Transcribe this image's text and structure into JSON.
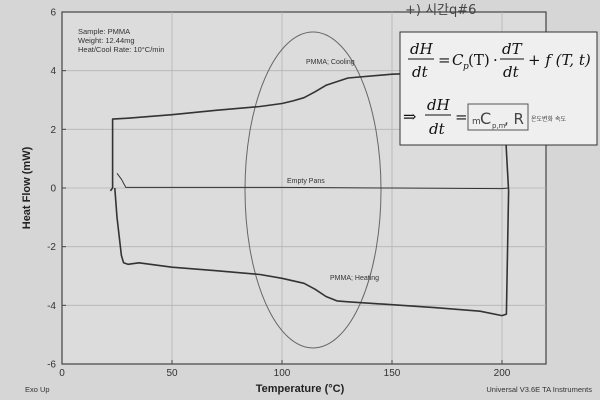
{
  "chart_data": {
    "type": "line",
    "xlabel": "Temperature (°C)",
    "ylabel": "Heat Flow (mW)",
    "xlim": [
      0,
      220
    ],
    "ylim": [
      -6,
      6
    ],
    "x_ticks": [
      "0",
      "50",
      "100",
      "150",
      "200"
    ],
    "y_ticks": [
      "6",
      "4",
      "2",
      "0",
      "-2",
      "-4",
      "-6"
    ],
    "sample_info": [
      "Sample: PMMA",
      "Weight: 12.44mg",
      "Heat/Cool Rate: 10°C/min"
    ],
    "series": [
      {
        "name": "PMMA; Cooling",
        "x": [
          22,
          23,
          23,
          30,
          50,
          70,
          90,
          100,
          105,
          110,
          115,
          120,
          130,
          150,
          170,
          190,
          200,
          203
        ],
        "y": [
          -0.1,
          0.0,
          2.35,
          2.38,
          2.5,
          2.65,
          2.78,
          2.88,
          2.97,
          3.08,
          3.28,
          3.5,
          3.75,
          3.88,
          3.93,
          3.97,
          4.0,
          -0.1
        ]
      },
      {
        "name": "Empty Pans",
        "x": [
          25,
          27,
          29,
          50,
          100,
          150,
          200,
          203
        ],
        "y": [
          0.5,
          0.3,
          0.02,
          0.02,
          0.02,
          0.0,
          -0.02,
          0.0
        ]
      },
      {
        "name": "PMMA; Heating",
        "x": [
          24,
          25,
          27,
          28,
          30,
          35,
          50,
          70,
          90,
          100,
          110,
          115,
          120,
          125,
          130,
          150,
          170,
          190,
          200,
          202,
          203
        ],
        "y": [
          0.0,
          -1.0,
          -2.3,
          -2.55,
          -2.6,
          -2.55,
          -2.7,
          -2.82,
          -2.95,
          -3.08,
          -3.25,
          -3.45,
          -3.7,
          -3.85,
          -3.88,
          -3.98,
          -4.08,
          -4.2,
          -4.35,
          -4.3,
          -0.1
        ]
      }
    ],
    "annotations": [
      "PMMA; Cooling",
      "Empty Pans",
      "PMMA; Heating"
    ]
  },
  "footer": {
    "left": "Exo Up",
    "right": "Universal V3.6E TA Instruments"
  },
  "handwriting": {
    "top": "+) 시간q#6"
  },
  "equation": {
    "dH": "dH",
    "dt": "dt",
    "dT": "dT",
    "cp": "C",
    "cp_sub": "p",
    "T_arg": "(T)",
    "f_term": "+ f (T, t)",
    "eq": "=",
    "dot": "·",
    "implies": "⇒",
    "hand_m": "m",
    "hand_C": "C",
    "hand_sub": "p,m",
    "hand_R": ", R",
    "hand_note": "온도변화\n속도"
  }
}
